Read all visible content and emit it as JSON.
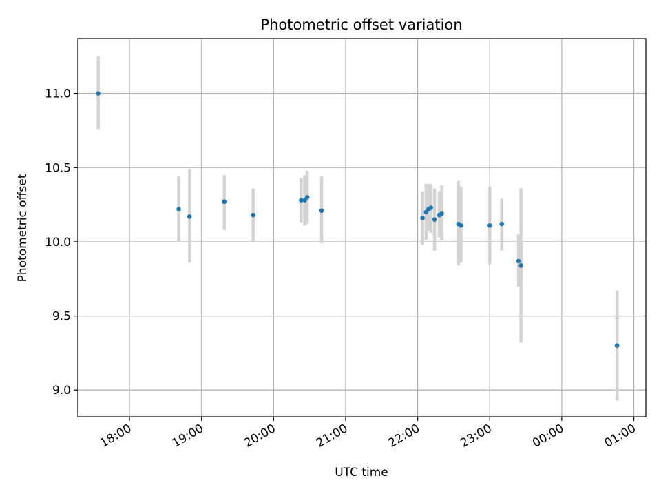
{
  "chart_data": {
    "type": "scatter",
    "title": "Photometric offset variation",
    "xlabel": "UTC time",
    "ylabel": "Photometric offset",
    "xlim": [
      "17:17",
      "01:10"
    ],
    "ylim": [
      8.82,
      11.37
    ],
    "x_ticks": [
      "18:00",
      "19:00",
      "20:00",
      "21:00",
      "22:00",
      "23:00",
      "00:00",
      "01:00"
    ],
    "y_ticks": [
      "9.0",
      "9.5",
      "10.0",
      "10.5",
      "11.0"
    ],
    "grid": true,
    "colors": {
      "point": "#1f77b4",
      "errorbar": "#d3d3d3",
      "grid": "#b0b0b0"
    },
    "series": [
      {
        "points": [
          {
            "x": "17:34",
            "y": 11.0,
            "low": 10.76,
            "high": 11.25
          },
          {
            "x": "18:41",
            "y": 10.22,
            "low": 10.0,
            "high": 10.44
          },
          {
            "x": "18:50",
            "y": 10.17,
            "low": 9.86,
            "high": 10.49
          },
          {
            "x": "19:19",
            "y": 10.27,
            "low": 10.08,
            "high": 10.45
          },
          {
            "x": "19:43",
            "y": 10.18,
            "low": 10.0,
            "high": 10.36
          },
          {
            "x": "20:23",
            "y": 10.28,
            "low": 10.13,
            "high": 10.43
          },
          {
            "x": "20:26",
            "y": 10.28,
            "low": 10.11,
            "high": 10.45
          },
          {
            "x": "20:28",
            "y": 10.3,
            "low": 10.12,
            "high": 10.48
          },
          {
            "x": "20:40",
            "y": 10.21,
            "low": 9.99,
            "high": 10.44
          },
          {
            "x": "22:04",
            "y": 10.16,
            "low": 9.98,
            "high": 10.34
          },
          {
            "x": "22:07",
            "y": 10.2,
            "low": 10.01,
            "high": 10.39
          },
          {
            "x": "22:09",
            "y": 10.22,
            "low": 10.07,
            "high": 10.39
          },
          {
            "x": "22:11",
            "y": 10.23,
            "low": 10.06,
            "high": 10.39
          },
          {
            "x": "22:14",
            "y": 10.15,
            "low": 9.94,
            "high": 10.36
          },
          {
            "x": "22:18",
            "y": 10.18,
            "low": 10.03,
            "high": 10.34
          },
          {
            "x": "22:20",
            "y": 10.19,
            "low": 10.01,
            "high": 10.38
          },
          {
            "x": "22:34",
            "y": 10.12,
            "low": 9.84,
            "high": 10.41
          },
          {
            "x": "22:36",
            "y": 10.11,
            "low": 9.86,
            "high": 10.37
          },
          {
            "x": "23:00",
            "y": 10.11,
            "low": 9.85,
            "high": 10.37
          },
          {
            "x": "23:10",
            "y": 10.12,
            "low": 9.94,
            "high": 10.29
          },
          {
            "x": "23:24",
            "y": 9.87,
            "low": 9.7,
            "high": 10.05
          },
          {
            "x": "23:26",
            "y": 9.84,
            "low": 9.32,
            "high": 10.36
          },
          {
            "x": "00:46",
            "y": 9.3,
            "low": 8.93,
            "high": 9.67
          }
        ]
      }
    ]
  }
}
